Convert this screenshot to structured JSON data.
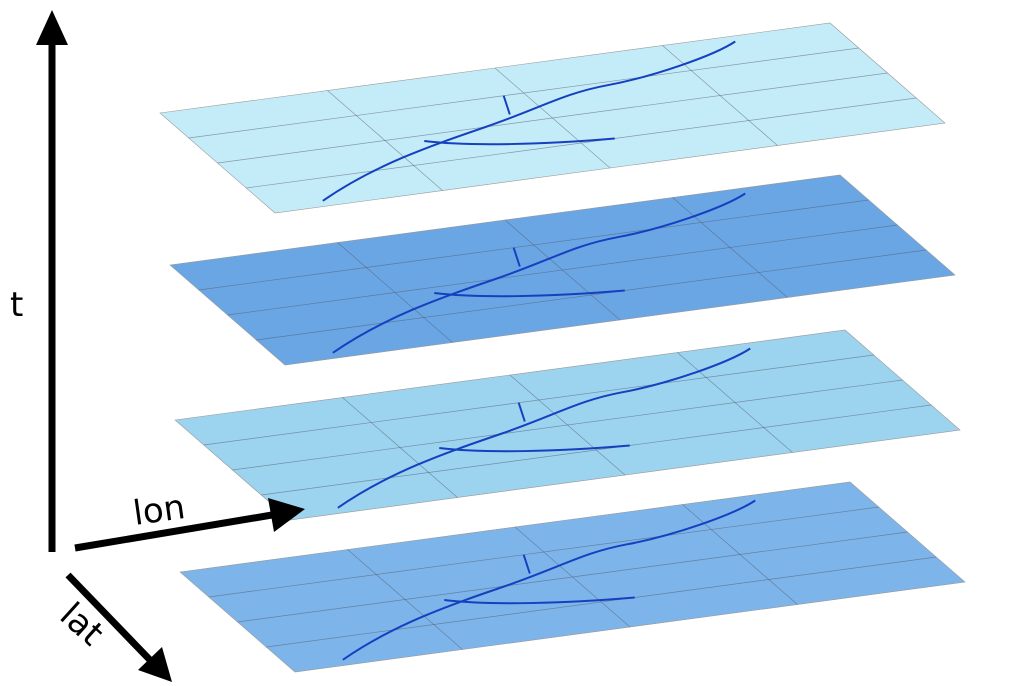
{
  "axes": {
    "time": "t",
    "longitude": "lon",
    "latitude": "lat"
  }
}
